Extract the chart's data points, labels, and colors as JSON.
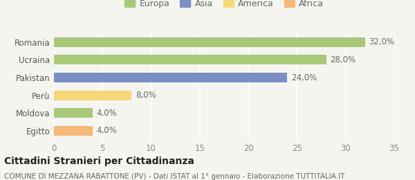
{
  "categories": [
    "Romania",
    "Ucraina",
    "Pakistan",
    "Perù",
    "Moldova",
    "Egitto"
  ],
  "values": [
    32.0,
    28.0,
    24.0,
    8.0,
    4.0,
    4.0
  ],
  "bar_colors": [
    "#a8c97a",
    "#a8c97a",
    "#7b8fc4",
    "#f5d87a",
    "#a8c97a",
    "#f5b87a"
  ],
  "legend": [
    {
      "label": "Europa",
      "color": "#a8c97a"
    },
    {
      "label": "Asia",
      "color": "#7b8fc4"
    },
    {
      "label": "America",
      "color": "#f5d87a"
    },
    {
      "label": "Africa",
      "color": "#f5b87a"
    }
  ],
  "xlim": [
    0,
    35
  ],
  "xticks": [
    0,
    5,
    10,
    15,
    20,
    25,
    30,
    35
  ],
  "title": "Cittadini Stranieri per Cittadinanza",
  "subtitle": "COMUNE DI MEZZANA RABATTONE (PV) - Dati ISTAT al 1° gennaio - Elaborazione TUTTITALIA.IT",
  "background_color": "#f5f5f0",
  "grid_color": "#ffffff",
  "bar_height": 0.55,
  "value_label_fontsize": 8.5,
  "tick_label_fontsize": 8.5,
  "legend_fontsize": 9,
  "title_fontsize": 10,
  "subtitle_fontsize": 7.5
}
